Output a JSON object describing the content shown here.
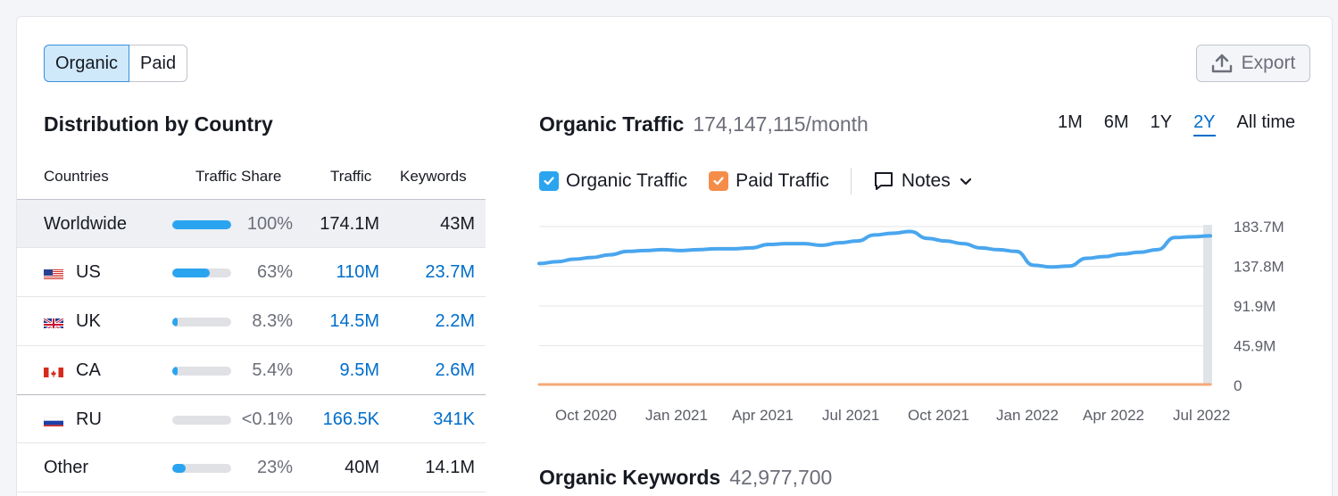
{
  "toggle": {
    "organic": "Organic",
    "paid": "Paid"
  },
  "export_label": "Export",
  "distribution": {
    "title": "Distribution by Country",
    "headers": {
      "countries": "Countries",
      "share": "Traffic Share",
      "traffic": "Traffic",
      "keywords": "Keywords"
    },
    "rows": [
      {
        "name": "Worldwide",
        "share": "100%",
        "share_value": 100,
        "traffic": "174.1M",
        "keywords": "43M"
      },
      {
        "name": "US",
        "share": "63%",
        "share_value": 63,
        "traffic": "110M",
        "keywords": "23.7M"
      },
      {
        "name": "UK",
        "share": "8.3%",
        "share_value": 8.3,
        "traffic": "14.5M",
        "keywords": "2.2M"
      },
      {
        "name": "CA",
        "share": "5.4%",
        "share_value": 5.4,
        "traffic": "9.5M",
        "keywords": "2.6M"
      },
      {
        "name": "RU",
        "share": "<0.1%",
        "share_value": 0,
        "traffic": "166.5K",
        "keywords": "341K"
      },
      {
        "name": "Other",
        "share": "23%",
        "share_value": 23,
        "traffic": "40M",
        "keywords": "14.1M"
      }
    ]
  },
  "traffic": {
    "title": "Organic Traffic",
    "value": "174,147,115/month",
    "periods": [
      "1M",
      "6M",
      "1Y",
      "2Y",
      "All time"
    ],
    "active_period": "2Y",
    "legend": {
      "organic": "Organic Traffic",
      "paid": "Paid Traffic",
      "notes": "Notes"
    }
  },
  "keywords_section": {
    "title": "Organic Keywords",
    "value": "42,977,700"
  },
  "colors": {
    "organic": "#4aa6ee",
    "paid": "#f6a97a",
    "link": "#006dca"
  },
  "chart_data": {
    "type": "line",
    "title": "Organic Traffic",
    "y_ticks": [
      "183.7M",
      "137.8M",
      "91.9M",
      "45.9M",
      "0"
    ],
    "ylim": [
      0,
      183.7
    ],
    "x_ticks": [
      "Oct 2020",
      "Jan 2021",
      "Apr 2021",
      "Jul 2021",
      "Oct 2021",
      "Jan 2022",
      "Apr 2022",
      "Jul 2022"
    ],
    "series": [
      {
        "name": "Organic Traffic",
        "values": [
          141,
          143,
          146,
          148,
          151,
          155,
          156,
          157,
          156,
          157,
          158,
          158,
          159,
          163,
          164,
          164,
          162,
          165,
          167,
          174,
          176,
          178,
          170,
          167,
          164,
          159,
          157,
          155,
          139,
          137,
          138,
          147,
          149,
          152,
          154,
          157,
          171,
          172,
          173
        ]
      },
      {
        "name": "Paid Traffic",
        "values": [
          1,
          1,
          1,
          1,
          1,
          1,
          1,
          1,
          1,
          1,
          1,
          1,
          1,
          1,
          1,
          1,
          1,
          1,
          1,
          1,
          1,
          1,
          1,
          1,
          1,
          1,
          1,
          1,
          1,
          1,
          1,
          1,
          1,
          1,
          1,
          1,
          1,
          1,
          1
        ]
      }
    ]
  }
}
